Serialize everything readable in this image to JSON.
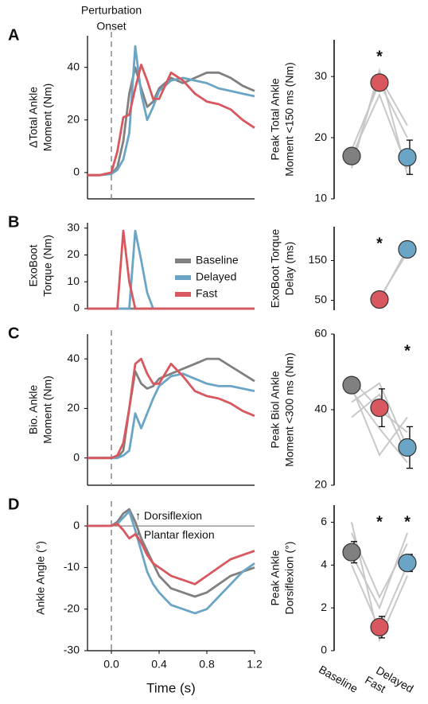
{
  "chart_data": [
    {
      "type": "line",
      "panel": "A",
      "annotation": [
        "Perturbation",
        "Onset"
      ],
      "onset_line": true,
      "ylabel": [
        "ΔTotal Ankle",
        "Moment (Nm)"
      ],
      "x": [
        -0.2,
        -0.1,
        0,
        0.05,
        0.1,
        0.15,
        0.2,
        0.25,
        0.3,
        0.35,
        0.4,
        0.5,
        0.6,
        0.7,
        0.8,
        0.9,
        1.0,
        1.1,
        1.2
      ],
      "xlim": [
        -0.2,
        1.2
      ],
      "ylim": [
        -10,
        52
      ],
      "yticks": [
        0,
        20,
        40
      ],
      "series": [
        {
          "name": "Baseline",
          "color": "#808080",
          "values": [
            -1,
            -1,
            -0.5,
            2,
            12,
            30,
            40,
            32,
            25,
            27,
            32,
            36,
            34,
            36,
            38,
            38,
            36,
            33,
            31
          ]
        },
        {
          "name": "Delayed",
          "color": "#6ba5c5",
          "values": [
            -1,
            -1,
            -0.5,
            1,
            5,
            15,
            48,
            30,
            20,
            25,
            31,
            35,
            36,
            35,
            34,
            32,
            31,
            30,
            29
          ]
        },
        {
          "name": "Fast",
          "color": "#d9575e",
          "values": [
            -1,
            -1,
            0,
            8,
            21,
            22,
            32,
            41,
            35,
            28,
            28,
            38,
            35,
            30,
            27,
            26,
            24,
            20,
            17
          ]
        }
      ]
    },
    {
      "type": "dot",
      "ylabel": [
        "Peak Total Ankle",
        "Moment <150 ms (Nm)"
      ],
      "ylim": [
        10,
        36
      ],
      "yticks": [
        10,
        20,
        30
      ],
      "colors": [
        "#808080",
        "#d9575e",
        "#6ba5c5"
      ],
      "values": [
        17,
        29,
        16.8
      ],
      "errors": [
        0.8,
        0.9,
        2.8
      ],
      "significant": [
        false,
        true,
        false
      ],
      "marker": "*",
      "subjects": [
        [
          15,
          31,
          14
        ],
        [
          16,
          30,
          22
        ],
        [
          17,
          27,
          15
        ],
        [
          18,
          29,
          20
        ]
      ]
    },
    {
      "type": "line",
      "panel": "B",
      "onset_line": false,
      "legend": "center-right",
      "ylabel": [
        "ExoBoot",
        "Torque (Nm)"
      ],
      "x": [
        -0.2,
        -0.1,
        0,
        0.05,
        0.1,
        0.15,
        0.2,
        0.25,
        0.3,
        0.35,
        0.4,
        0.5,
        0.6,
        0.7,
        0.8,
        0.9,
        1.0,
        1.1,
        1.2
      ],
      "xlim": [
        -0.2,
        1.2
      ],
      "ylim": [
        0,
        32
      ],
      "yticks": [
        0,
        10,
        20,
        30
      ],
      "series": [
        {
          "name": "Baseline",
          "color": "#808080",
          "values": [
            0,
            0,
            0,
            0,
            0,
            0,
            0,
            0,
            0,
            0,
            0,
            0,
            0,
            0,
            0,
            0,
            0,
            0,
            0
          ]
        },
        {
          "name": "Delayed",
          "color": "#6ba5c5",
          "values": [
            0,
            0,
            0,
            0,
            0,
            0,
            29,
            18,
            6,
            0,
            0,
            0,
            0,
            0,
            0,
            0,
            0,
            0,
            0
          ]
        },
        {
          "name": "Fast",
          "color": "#d9575e",
          "values": [
            0,
            0,
            0,
            0,
            29,
            10,
            0,
            0,
            0,
            0,
            0,
            0,
            0,
            0,
            0,
            0,
            0,
            0,
            0
          ]
        }
      ]
    },
    {
      "type": "dot",
      "ylabel": [
        "ExoBoot Torque",
        "Delay (ms)"
      ],
      "ylim": [
        25,
        235
      ],
      "yticks": [
        50,
        150
      ],
      "colors": [
        "#808080",
        "#d9575e",
        "#6ba5c5"
      ],
      "values": [
        null,
        52,
        178
      ],
      "errors": [
        null,
        0,
        0
      ],
      "significant": [
        false,
        true,
        false
      ],
      "marker": "*",
      "subjects": [
        [
          null,
          55,
          170
        ],
        [
          null,
          50,
          180
        ],
        [
          null,
          53,
          175
        ]
      ]
    },
    {
      "type": "line",
      "panel": "C",
      "onset_line": true,
      "ylabel": [
        "Bio. Ankle",
        "Moment (Nm)"
      ],
      "x": [
        -0.2,
        -0.1,
        0,
        0.05,
        0.1,
        0.15,
        0.2,
        0.25,
        0.3,
        0.35,
        0.4,
        0.5,
        0.6,
        0.7,
        0.8,
        0.9,
        1.0,
        1.1,
        1.2
      ],
      "xlim": [
        -0.2,
        1.2
      ],
      "ylim": [
        -11,
        50
      ],
      "yticks": [
        0,
        20,
        40
      ],
      "series": [
        {
          "name": "Baseline",
          "color": "#808080",
          "values": [
            0,
            0,
            0,
            0,
            3,
            20,
            35,
            30,
            28,
            29,
            32,
            34,
            36,
            38,
            40,
            40,
            37,
            34,
            31
          ]
        },
        {
          "name": "Delayed",
          "color": "#6ba5c5",
          "values": [
            0,
            0,
            0,
            0,
            1,
            3,
            18,
            12,
            18,
            24,
            29,
            33,
            34,
            32,
            30,
            29,
            29,
            28,
            27
          ]
        },
        {
          "name": "Fast",
          "color": "#d9575e",
          "values": [
            0,
            0,
            0,
            1,
            6,
            20,
            38,
            40,
            34,
            30,
            30,
            38,
            33,
            27,
            25,
            24,
            22,
            19,
            17
          ]
        }
      ]
    },
    {
      "type": "dot",
      "ylabel": [
        "Peak Biol Ankle",
        "Moment <300 ms (Nm)"
      ],
      "ylim": [
        20,
        60
      ],
      "yticks": [
        20,
        40,
        60
      ],
      "colors": [
        "#808080",
        "#d9575e",
        "#6ba5c5"
      ],
      "values": [
        46.5,
        40.5,
        30
      ],
      "errors": [
        1,
        5,
        5.5
      ],
      "significant": [
        false,
        false,
        true
      ],
      "marker": "*",
      "subjects": [
        [
          48,
          40,
          34
        ],
        [
          46,
          28,
          38
        ],
        [
          42,
          47,
          30
        ],
        [
          38,
          44,
          28
        ],
        [
          45,
          35,
          26
        ]
      ]
    },
    {
      "type": "line",
      "panel": "D",
      "onset_line": true,
      "zero_line": true,
      "ylabel": [
        "Ankle Angle (°)"
      ],
      "xlabel": "Time (s)",
      "notes": [
        "↑ Dorsiflexion",
        "↓ Plantar flexion"
      ],
      "x": [
        -0.2,
        -0.1,
        0,
        0.05,
        0.1,
        0.15,
        0.2,
        0.25,
        0.3,
        0.35,
        0.4,
        0.5,
        0.6,
        0.7,
        0.8,
        0.9,
        1.0,
        1.1,
        1.2
      ],
      "xlim": [
        -0.2,
        1.2
      ],
      "xticks": [
        {
          "value": 0,
          "label": "0.0"
        },
        0.4,
        0.8,
        1.2
      ],
      "ylim": [
        -30,
        5
      ],
      "yticks": [
        0,
        -10,
        -20,
        -30
      ],
      "series": [
        {
          "name": "Baseline",
          "color": "#808080",
          "values": [
            0,
            0,
            0,
            1,
            3,
            4,
            1,
            -3,
            -6,
            -9,
            -12,
            -15,
            -16,
            -17,
            -16,
            -14,
            -12,
            -11,
            -10
          ]
        },
        {
          "name": "Delayed",
          "color": "#6ba5c5",
          "values": [
            0,
            0,
            0,
            0.5,
            2,
            3.5,
            -1,
            -6,
            -11,
            -14,
            -16,
            -19,
            -20,
            -21,
            -20,
            -17,
            -14,
            -11,
            -9
          ]
        },
        {
          "name": "Fast",
          "color": "#d9575e",
          "values": [
            0,
            0,
            0,
            0.5,
            -1,
            -3,
            -2,
            -4,
            -7,
            -9,
            -10,
            -12,
            -13,
            -14,
            -12,
            -10,
            -8,
            -7,
            -6
          ]
        }
      ]
    },
    {
      "type": "dot",
      "ylabel": [
        "Peak Ankle",
        "Dorsiflexion (°)"
      ],
      "categories": [
        "Baseline",
        "Fast",
        "Delayed"
      ],
      "ylim": [
        0,
        6.8
      ],
      "yticks": [
        0,
        2,
        4,
        6
      ],
      "colors": [
        "#808080",
        "#d9575e",
        "#6ba5c5"
      ],
      "values": [
        4.6,
        1.1,
        4.1
      ],
      "errors": [
        0.5,
        0.5,
        0.4
      ],
      "significant": [
        false,
        true,
        true
      ],
      "marker": "*",
      "subjects": [
        [
          5.5,
          2.5,
          5
        ],
        [
          4,
          1,
          4
        ],
        [
          6,
          0.5,
          3.5
        ],
        [
          4.5,
          2,
          5.5
        ]
      ]
    }
  ]
}
